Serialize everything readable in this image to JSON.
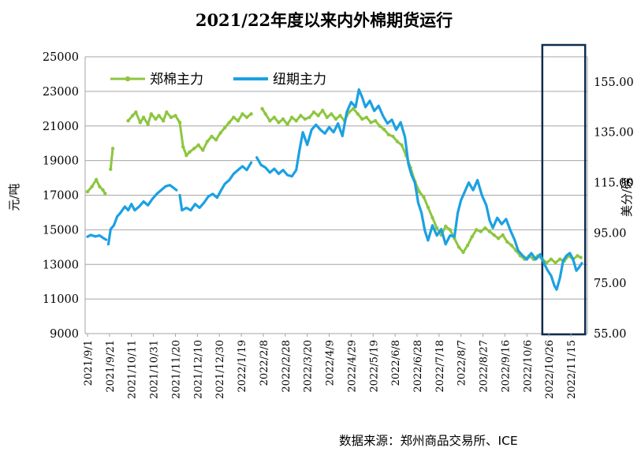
{
  "chart_data": {
    "type": "line",
    "title": "2021/22年度以来内外棉期货运行",
    "y_left_label": "元/吨",
    "y_right_label": "美分/磅",
    "source_note": "数据来源：郑州商品交易所、ICE",
    "y_left_range": [
      9000,
      25000
    ],
    "y_right_range": [
      55,
      165
    ],
    "y_left_ticks": [
      "25000",
      "23000",
      "21000",
      "19000",
      "17000",
      "15000",
      "13000",
      "11000",
      "9000"
    ],
    "y_right_ticks": [
      "155.00",
      "135.00",
      "115.00",
      "95.00",
      "75.00",
      "55.00"
    ],
    "x_ticks": [
      "2021/9/1",
      "2021/9/21",
      "2021/10/11",
      "2021/10/31",
      "2021/11/20",
      "2021/12/10",
      "2021/12/30",
      "2022/1/19",
      "2022/2/8",
      "2022/2/28",
      "2022/3/20",
      "2022/4/9",
      "2022/4/29",
      "2022/5/19",
      "2022/6/8",
      "2022/6/28",
      "2022/7/18",
      "2022/8/7",
      "2022/8/27",
      "2022/9/16",
      "2022/10/6",
      "2022/10/26",
      "2022/11/15"
    ],
    "x_range": [
      "2021-09-01",
      "2022-11-25"
    ],
    "highlight_range": [
      "2022-10-20",
      "2022-11-28"
    ],
    "grid": "horizontal",
    "legend_position": "top-left",
    "series": [
      {
        "name": "郑棉主力",
        "axis": "left",
        "color": "#8dc63f",
        "points": [
          [
            "2021-09-01",
            17200
          ],
          [
            "2021-09-05",
            17500
          ],
          [
            "2021-09-09",
            17900
          ],
          [
            "2021-09-12",
            17500
          ],
          [
            "2021-09-15",
            17300
          ],
          [
            "2021-09-17",
            17100
          ],
          null,
          [
            "2021-09-22",
            18500
          ],
          [
            "2021-09-24",
            19700
          ],
          null,
          [
            "2021-10-08",
            21300
          ],
          [
            "2021-10-12",
            21600
          ],
          [
            "2021-10-15",
            21800
          ],
          [
            "2021-10-19",
            21200
          ],
          [
            "2021-10-22",
            21500
          ],
          [
            "2021-10-26",
            21100
          ],
          [
            "2021-10-29",
            21700
          ],
          [
            "2021-11-02",
            21400
          ],
          [
            "2021-11-05",
            21600
          ],
          [
            "2021-11-09",
            21300
          ],
          [
            "2021-11-12",
            21800
          ],
          [
            "2021-11-16",
            21500
          ],
          [
            "2021-11-20",
            21600
          ],
          [
            "2021-11-24",
            21200
          ],
          [
            "2021-11-27",
            19800
          ],
          [
            "2021-11-30",
            19300
          ],
          [
            "2021-12-03",
            19500
          ],
          [
            "2021-12-07",
            19700
          ],
          [
            "2021-12-11",
            19900
          ],
          [
            "2021-12-15",
            19600
          ],
          [
            "2021-12-19",
            20100
          ],
          [
            "2021-12-23",
            20400
          ],
          [
            "2021-12-27",
            20200
          ],
          [
            "2021-12-31",
            20600
          ],
          [
            "2022-01-04",
            20900
          ],
          [
            "2022-01-08",
            21200
          ],
          [
            "2022-01-12",
            21500
          ],
          [
            "2022-01-16",
            21300
          ],
          [
            "2022-01-20",
            21700
          ],
          [
            "2022-01-24",
            21500
          ],
          [
            "2022-01-28",
            21700
          ],
          null,
          [
            "2022-02-07",
            22000
          ],
          [
            "2022-02-10",
            21700
          ],
          [
            "2022-02-14",
            21300
          ],
          [
            "2022-02-18",
            21500
          ],
          [
            "2022-02-22",
            21200
          ],
          [
            "2022-02-26",
            21400
          ],
          [
            "2022-03-02",
            21100
          ],
          [
            "2022-03-06",
            21500
          ],
          [
            "2022-03-10",
            21300
          ],
          [
            "2022-03-14",
            21600
          ],
          [
            "2022-03-18",
            21400
          ],
          [
            "2022-03-22",
            21500
          ],
          [
            "2022-03-26",
            21800
          ],
          [
            "2022-03-30",
            21600
          ],
          [
            "2022-04-03",
            21900
          ],
          [
            "2022-04-07",
            21500
          ],
          [
            "2022-04-11",
            21700
          ],
          [
            "2022-04-15",
            21400
          ],
          [
            "2022-04-19",
            21600
          ],
          [
            "2022-04-23",
            21300
          ],
          [
            "2022-04-27",
            21800
          ],
          [
            "2022-05-01",
            22000
          ],
          [
            "2022-05-05",
            21700
          ],
          [
            "2022-05-09",
            21400
          ],
          [
            "2022-05-13",
            21500
          ],
          [
            "2022-05-17",
            21200
          ],
          [
            "2022-05-21",
            21300
          ],
          [
            "2022-05-25",
            21000
          ],
          [
            "2022-05-29",
            20800
          ],
          [
            "2022-06-02",
            20500
          ],
          [
            "2022-06-06",
            20400
          ],
          [
            "2022-06-10",
            20100
          ],
          [
            "2022-06-14",
            19900
          ],
          [
            "2022-06-18",
            19300
          ],
          [
            "2022-06-22",
            18600
          ],
          [
            "2022-06-26",
            17800
          ],
          [
            "2022-06-30",
            17200
          ],
          [
            "2022-07-04",
            16900
          ],
          [
            "2022-07-08",
            16300
          ],
          [
            "2022-07-12",
            15700
          ],
          [
            "2022-07-16",
            15100
          ],
          [
            "2022-07-20",
            14700
          ],
          [
            "2022-07-24",
            15200
          ],
          [
            "2022-07-28",
            15000
          ],
          [
            "2022-08-01",
            14500
          ],
          [
            "2022-08-05",
            14000
          ],
          [
            "2022-08-09",
            13700
          ],
          [
            "2022-08-13",
            14100
          ],
          [
            "2022-08-17",
            14600
          ],
          [
            "2022-08-21",
            15000
          ],
          [
            "2022-08-25",
            14900
          ],
          [
            "2022-08-29",
            15100
          ],
          [
            "2022-09-02",
            14900
          ],
          [
            "2022-09-06",
            14700
          ],
          [
            "2022-09-10",
            14500
          ],
          [
            "2022-09-14",
            14700
          ],
          [
            "2022-09-18",
            14300
          ],
          [
            "2022-09-22",
            14100
          ],
          [
            "2022-09-26",
            13800
          ],
          [
            "2022-09-30",
            13500
          ],
          [
            "2022-10-04",
            13300
          ],
          [
            "2022-10-08",
            13500
          ],
          [
            "2022-10-12",
            13300
          ],
          [
            "2022-10-16",
            13500
          ],
          [
            "2022-10-20",
            13300
          ],
          [
            "2022-10-24",
            13100
          ],
          [
            "2022-10-28",
            13300
          ],
          [
            "2022-11-01",
            13100
          ],
          [
            "2022-11-05",
            13300
          ],
          [
            "2022-11-09",
            13200
          ],
          [
            "2022-11-13",
            13500
          ],
          [
            "2022-11-17",
            13300
          ],
          [
            "2022-11-21",
            13500
          ],
          [
            "2022-11-24",
            13400
          ]
        ]
      },
      {
        "name": "纽期主力",
        "axis": "right",
        "color": "#1ba1e2",
        "points": [
          [
            "2021-09-01",
            93.5
          ],
          [
            "2021-09-04",
            94.2
          ],
          [
            "2021-09-08",
            93.6
          ],
          [
            "2021-09-12",
            94.0
          ],
          [
            "2021-09-16",
            92.8
          ],
          [
            "2021-09-18",
            92.3
          ],
          null,
          [
            "2021-09-20",
            90.5
          ],
          [
            "2021-09-22",
            96.5
          ],
          [
            "2021-09-25",
            98.0
          ],
          [
            "2021-09-28",
            101.5
          ],
          [
            "2021-10-01",
            103.0
          ],
          [
            "2021-10-05",
            105.5
          ],
          [
            "2021-10-08",
            104.0
          ],
          [
            "2021-10-11",
            106.5
          ],
          [
            "2021-10-14",
            104.0
          ],
          [
            "2021-10-18",
            105.5
          ],
          [
            "2021-10-22",
            107.5
          ],
          [
            "2021-10-26",
            106.0
          ],
          [
            "2021-10-30",
            108.5
          ],
          [
            "2021-11-03",
            110.5
          ],
          [
            "2021-11-07",
            112.0
          ],
          [
            "2021-11-11",
            113.5
          ],
          [
            "2021-11-15",
            114.0
          ],
          [
            "2021-11-18",
            113.0
          ],
          [
            "2021-11-21",
            112.0
          ],
          null,
          [
            "2021-11-24",
            110.0
          ],
          [
            "2021-11-26",
            104.0
          ],
          [
            "2021-11-30",
            105.0
          ],
          [
            "2021-12-04",
            104.0
          ],
          [
            "2021-12-08",
            106.5
          ],
          [
            "2021-12-12",
            105.0
          ],
          [
            "2021-12-16",
            107.0
          ],
          [
            "2021-12-20",
            109.5
          ],
          [
            "2021-12-24",
            110.5
          ],
          [
            "2021-12-28",
            109.0
          ],
          [
            "2021-12-31",
            111.5
          ],
          [
            "2022-01-04",
            114.5
          ],
          [
            "2022-01-08",
            116.0
          ],
          [
            "2022-01-12",
            118.5
          ],
          [
            "2022-01-16",
            120.0
          ],
          [
            "2022-01-20",
            121.5
          ],
          [
            "2022-01-24",
            120.0
          ],
          [
            "2022-01-28",
            123.0
          ],
          null,
          [
            "2022-02-02",
            125.0
          ],
          [
            "2022-02-06",
            122.0
          ],
          [
            "2022-02-10",
            121.0
          ],
          [
            "2022-02-14",
            119.0
          ],
          [
            "2022-02-18",
            120.5
          ],
          [
            "2022-02-22",
            118.5
          ],
          [
            "2022-02-26",
            120.0
          ],
          [
            "2022-03-02",
            118.0
          ],
          [
            "2022-03-06",
            117.5
          ],
          [
            "2022-03-10",
            120.0
          ],
          [
            "2022-03-13",
            128.0
          ],
          [
            "2022-03-16",
            135.0
          ],
          [
            "2022-03-20",
            130.0
          ],
          [
            "2022-03-24",
            136.0
          ],
          [
            "2022-03-28",
            138.0
          ],
          [
            "2022-04-01",
            136.0
          ],
          [
            "2022-04-05",
            134.5
          ],
          [
            "2022-04-09",
            137.0
          ],
          [
            "2022-04-13",
            135.0
          ],
          [
            "2022-04-17",
            138.5
          ],
          [
            "2022-04-21",
            133.5
          ],
          [
            "2022-04-25",
            143.0
          ],
          [
            "2022-04-29",
            147.0
          ],
          [
            "2022-05-03",
            145.0
          ],
          [
            "2022-05-06",
            152.0
          ],
          [
            "2022-05-09",
            149.0
          ],
          [
            "2022-05-12",
            145.0
          ],
          [
            "2022-05-16",
            147.5
          ],
          [
            "2022-05-20",
            143.5
          ],
          [
            "2022-05-24",
            145.5
          ],
          [
            "2022-05-28",
            141.5
          ],
          [
            "2022-06-01",
            138.5
          ],
          [
            "2022-06-05",
            140.0
          ],
          [
            "2022-06-09",
            136.0
          ],
          [
            "2022-06-13",
            139.0
          ],
          [
            "2022-06-17",
            133.0
          ],
          [
            "2022-06-20",
            122.5
          ],
          [
            "2022-06-23",
            118.0
          ],
          [
            "2022-06-26",
            115.0
          ],
          [
            "2022-06-29",
            107.0
          ],
          [
            "2022-07-02",
            103.0
          ],
          [
            "2022-07-05",
            96.0
          ],
          [
            "2022-07-08",
            92.0
          ],
          [
            "2022-07-12",
            98.0
          ],
          [
            "2022-07-16",
            94.0
          ],
          [
            "2022-07-20",
            96.5
          ],
          [
            "2022-07-24",
            90.5
          ],
          [
            "2022-07-28",
            94.0
          ],
          [
            "2022-08-01",
            93.5
          ],
          [
            "2022-08-04",
            103.0
          ],
          [
            "2022-08-07",
            108.0
          ],
          [
            "2022-08-10",
            111.0
          ],
          [
            "2022-08-14",
            115.0
          ],
          [
            "2022-08-18",
            112.0
          ],
          [
            "2022-08-22",
            116.0
          ],
          [
            "2022-08-26",
            110.0
          ],
          [
            "2022-08-30",
            106.0
          ],
          [
            "2022-09-02",
            100.0
          ],
          [
            "2022-09-05",
            97.0
          ],
          [
            "2022-09-09",
            101.0
          ],
          [
            "2022-09-13",
            98.5
          ],
          [
            "2022-09-17",
            100.5
          ],
          [
            "2022-09-21",
            96.0
          ],
          [
            "2022-09-25",
            92.0
          ],
          [
            "2022-09-28",
            88.0
          ],
          [
            "2022-10-02",
            86.0
          ],
          [
            "2022-10-06",
            84.5
          ],
          [
            "2022-10-10",
            87.0
          ],
          [
            "2022-10-14",
            84.5
          ],
          [
            "2022-10-18",
            86.5
          ],
          [
            "2022-10-22",
            82.5
          ],
          [
            "2022-10-25",
            80.0
          ],
          [
            "2022-10-28",
            78.0
          ],
          [
            "2022-10-31",
            74.0
          ],
          [
            "2022-11-02",
            72.5
          ],
          [
            "2022-11-05",
            77.0
          ],
          [
            "2022-11-08",
            84.0
          ],
          [
            "2022-11-11",
            86.0
          ],
          [
            "2022-11-14",
            87.0
          ],
          [
            "2022-11-17",
            84.5
          ],
          [
            "2022-11-20",
            80.0
          ],
          [
            "2022-11-22",
            81.0
          ],
          [
            "2022-11-25",
            83.0
          ]
        ]
      }
    ]
  }
}
